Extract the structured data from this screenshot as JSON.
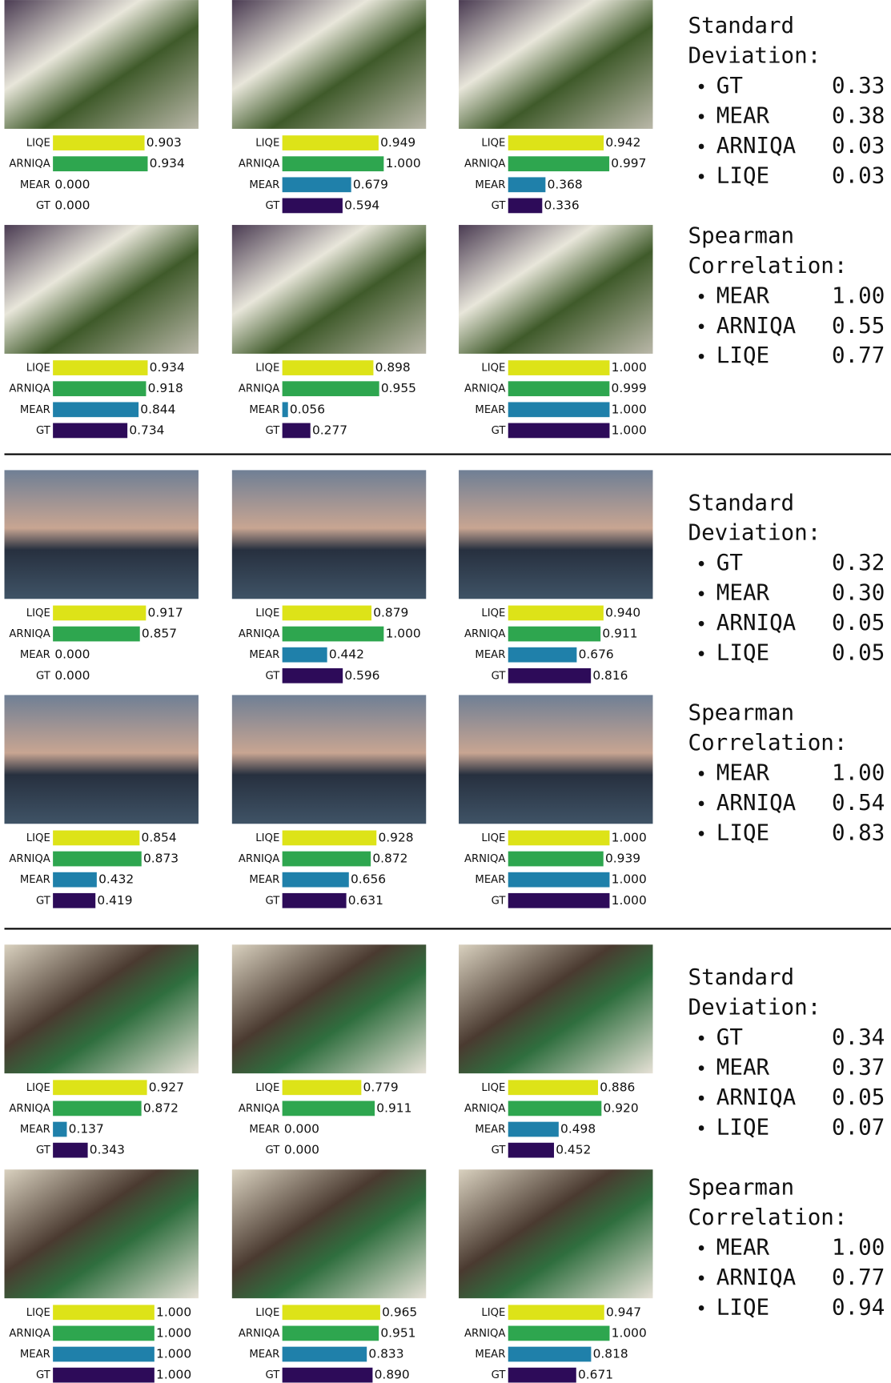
{
  "chart_data": [
    {
      "type": "hbar",
      "categories": [
        "LIQE",
        "ARNIQA",
        "MEAR",
        "GT"
      ],
      "values": [
        0.903,
        0.934,
        0,
        0
      ],
      "value_labels": [
        "0.903",
        "0.934",
        "0.000",
        "0.000"
      ],
      "xlim": [
        0,
        1
      ],
      "colors": [
        "#dde318",
        "#2ea64f",
        "#1f80aa",
        "#2d0b59"
      ]
    },
    {
      "type": "hbar",
      "categories": [
        "LIQE",
        "ARNIQA",
        "MEAR",
        "GT"
      ],
      "values": [
        0.949,
        1,
        0.679,
        0.594
      ],
      "value_labels": [
        "0.949",
        "1.000",
        "0.679",
        "0.594"
      ],
      "xlim": [
        0,
        1
      ],
      "colors": [
        "#dde318",
        "#2ea64f",
        "#1f80aa",
        "#2d0b59"
      ]
    },
    {
      "type": "hbar",
      "categories": [
        "LIQE",
        "ARNIQA",
        "MEAR",
        "GT"
      ],
      "values": [
        0.942,
        0.997,
        0.368,
        0.336
      ],
      "value_labels": [
        "0.942",
        "0.997",
        "0.368",
        "0.336"
      ],
      "xlim": [
        0,
        1
      ],
      "colors": [
        "#dde318",
        "#2ea64f",
        "#1f80aa",
        "#2d0b59"
      ]
    },
    {
      "type": "hbar",
      "categories": [
        "LIQE",
        "ARNIQA",
        "MEAR",
        "GT"
      ],
      "values": [
        0.934,
        0.918,
        0.844,
        0.734
      ],
      "value_labels": [
        "0.934",
        "0.918",
        "0.844",
        "0.734"
      ],
      "xlim": [
        0,
        1
      ],
      "colors": [
        "#dde318",
        "#2ea64f",
        "#1f80aa",
        "#2d0b59"
      ]
    },
    {
      "type": "hbar",
      "categories": [
        "LIQE",
        "ARNIQA",
        "MEAR",
        "GT"
      ],
      "values": [
        0.898,
        0.955,
        0.056,
        0.277
      ],
      "value_labels": [
        "0.898",
        "0.955",
        "0.056",
        "0.277"
      ],
      "xlim": [
        0,
        1
      ],
      "colors": [
        "#dde318",
        "#2ea64f",
        "#1f80aa",
        "#2d0b59"
      ]
    },
    {
      "type": "hbar",
      "categories": [
        "LIQE",
        "ARNIQA",
        "MEAR",
        "GT"
      ],
      "values": [
        1,
        0.999,
        1,
        1
      ],
      "value_labels": [
        "1.000",
        "0.999",
        "1.000",
        "1.000"
      ],
      "xlim": [
        0,
        1
      ],
      "colors": [
        "#dde318",
        "#2ea64f",
        "#1f80aa",
        "#2d0b59"
      ]
    },
    {
      "type": "hbar",
      "categories": [
        "LIQE",
        "ARNIQA",
        "MEAR",
        "GT"
      ],
      "values": [
        0.917,
        0.857,
        0,
        0
      ],
      "value_labels": [
        "0.917",
        "0.857",
        "0.000",
        "0.000"
      ],
      "xlim": [
        0,
        1
      ],
      "colors": [
        "#dde318",
        "#2ea64f",
        "#1f80aa",
        "#2d0b59"
      ]
    },
    {
      "type": "hbar",
      "categories": [
        "LIQE",
        "ARNIQA",
        "MEAR",
        "GT"
      ],
      "values": [
        0.879,
        1,
        0.442,
        0.596
      ],
      "value_labels": [
        "0.879",
        "1.000",
        "0.442",
        "0.596"
      ],
      "xlim": [
        0,
        1
      ],
      "colors": [
        "#dde318",
        "#2ea64f",
        "#1f80aa",
        "#2d0b59"
      ]
    },
    {
      "type": "hbar",
      "categories": [
        "LIQE",
        "ARNIQA",
        "MEAR",
        "GT"
      ],
      "values": [
        0.94,
        0.911,
        0.676,
        0.816
      ],
      "value_labels": [
        "0.940",
        "0.911",
        "0.676",
        "0.816"
      ],
      "xlim": [
        0,
        1
      ],
      "colors": [
        "#dde318",
        "#2ea64f",
        "#1f80aa",
        "#2d0b59"
      ]
    },
    {
      "type": "hbar",
      "categories": [
        "LIQE",
        "ARNIQA",
        "MEAR",
        "GT"
      ],
      "values": [
        0.854,
        0.873,
        0.432,
        0.419
      ],
      "value_labels": [
        "0.854",
        "0.873",
        "0.432",
        "0.419"
      ],
      "xlim": [
        0,
        1
      ],
      "colors": [
        "#dde318",
        "#2ea64f",
        "#1f80aa",
        "#2d0b59"
      ]
    },
    {
      "type": "hbar",
      "categories": [
        "LIQE",
        "ARNIQA",
        "MEAR",
        "GT"
      ],
      "values": [
        0.928,
        0.872,
        0.656,
        0.631
      ],
      "value_labels": [
        "0.928",
        "0.872",
        "0.656",
        "0.631"
      ],
      "xlim": [
        0,
        1
      ],
      "colors": [
        "#dde318",
        "#2ea64f",
        "#1f80aa",
        "#2d0b59"
      ]
    },
    {
      "type": "hbar",
      "categories": [
        "LIQE",
        "ARNIQA",
        "MEAR",
        "GT"
      ],
      "values": [
        1,
        0.939,
        1,
        1
      ],
      "value_labels": [
        "1.000",
        "0.939",
        "1.000",
        "1.000"
      ],
      "xlim": [
        0,
        1
      ],
      "colors": [
        "#dde318",
        "#2ea64f",
        "#1f80aa",
        "#2d0b59"
      ]
    },
    {
      "type": "hbar",
      "categories": [
        "LIQE",
        "ARNIQA",
        "MEAR",
        "GT"
      ],
      "values": [
        0.927,
        0.872,
        0.137,
        0.343
      ],
      "value_labels": [
        "0.927",
        "0.872",
        "0.137",
        "0.343"
      ],
      "xlim": [
        0,
        1
      ],
      "colors": [
        "#dde318",
        "#2ea64f",
        "#1f80aa",
        "#2d0b59"
      ]
    },
    {
      "type": "hbar",
      "categories": [
        "LIQE",
        "ARNIQA",
        "MEAR",
        "GT"
      ],
      "values": [
        0.779,
        0.911,
        0,
        0
      ],
      "value_labels": [
        "0.779",
        "0.911",
        "0.000",
        "0.000"
      ],
      "xlim": [
        0,
        1
      ],
      "colors": [
        "#dde318",
        "#2ea64f",
        "#1f80aa",
        "#2d0b59"
      ]
    },
    {
      "type": "hbar",
      "categories": [
        "LIQE",
        "ARNIQA",
        "MEAR",
        "GT"
      ],
      "values": [
        0.886,
        0.92,
        0.498,
        0.452
      ],
      "value_labels": [
        "0.886",
        "0.920",
        "0.498",
        "0.452"
      ],
      "xlim": [
        0,
        1
      ],
      "colors": [
        "#dde318",
        "#2ea64f",
        "#1f80aa",
        "#2d0b59"
      ]
    },
    {
      "type": "hbar",
      "categories": [
        "LIQE",
        "ARNIQA",
        "MEAR",
        "GT"
      ],
      "values": [
        1,
        1,
        1,
        1
      ],
      "value_labels": [
        "1.000",
        "1.000",
        "1.000",
        "1.000"
      ],
      "xlim": [
        0,
        1
      ],
      "colors": [
        "#dde318",
        "#2ea64f",
        "#1f80aa",
        "#2d0b59"
      ]
    },
    {
      "type": "hbar",
      "categories": [
        "LIQE",
        "ARNIQA",
        "MEAR",
        "GT"
      ],
      "values": [
        0.965,
        0.951,
        0.833,
        0.89
      ],
      "value_labels": [
        "0.965",
        "0.951",
        "0.833",
        "0.890"
      ],
      "xlim": [
        0,
        1
      ],
      "colors": [
        "#dde318",
        "#2ea64f",
        "#1f80aa",
        "#2d0b59"
      ]
    },
    {
      "type": "hbar",
      "categories": [
        "LIQE",
        "ARNIQA",
        "MEAR",
        "GT"
      ],
      "values": [
        0.947,
        1,
        0.818,
        0.671
      ],
      "value_labels": [
        "0.947",
        "1.000",
        "0.818",
        "0.671"
      ],
      "xlim": [
        0,
        1
      ],
      "colors": [
        "#dde318",
        "#2ea64f",
        "#1f80aa",
        "#2d0b59"
      ]
    }
  ],
  "stats": [
    {
      "std_title": [
        "Standard",
        "Deviation:"
      ],
      "std": [
        [
          "GT",
          "0.33"
        ],
        [
          "MEAR",
          "0.38"
        ],
        [
          "ARNIQA",
          "0.03"
        ],
        [
          "LIQE",
          "0.03"
        ]
      ],
      "spearman_title": [
        "Spearman",
        "Correlation:"
      ],
      "spearman": [
        [
          "MEAR",
          "1.00"
        ],
        [
          "ARNIQA",
          "0.55"
        ],
        [
          "LIQE",
          "0.77"
        ]
      ]
    },
    {
      "std_title": [
        "Standard",
        "Deviation:"
      ],
      "std": [
        [
          "GT",
          "0.32"
        ],
        [
          "MEAR",
          "0.30"
        ],
        [
          "ARNIQA",
          "0.05"
        ],
        [
          "LIQE",
          "0.05"
        ]
      ],
      "spearman_title": [
        "Spearman",
        "Correlation:"
      ],
      "spearman": [
        [
          "MEAR",
          "1.00"
        ],
        [
          "ARNIQA",
          "0.54"
        ],
        [
          "LIQE",
          "0.83"
        ]
      ]
    },
    {
      "std_title": [
        "Standard",
        "Deviation:"
      ],
      "std": [
        [
          "GT",
          "0.34"
        ],
        [
          "MEAR",
          "0.37"
        ],
        [
          "ARNIQA",
          "0.05"
        ],
        [
          "LIQE",
          "0.07"
        ]
      ],
      "spearman_title": [
        "Spearman",
        "Correlation:"
      ],
      "spearman": [
        [
          "MEAR",
          "1.00"
        ],
        [
          "ARNIQA",
          "0.77"
        ],
        [
          "LIQE",
          "0.94"
        ]
      ]
    }
  ]
}
